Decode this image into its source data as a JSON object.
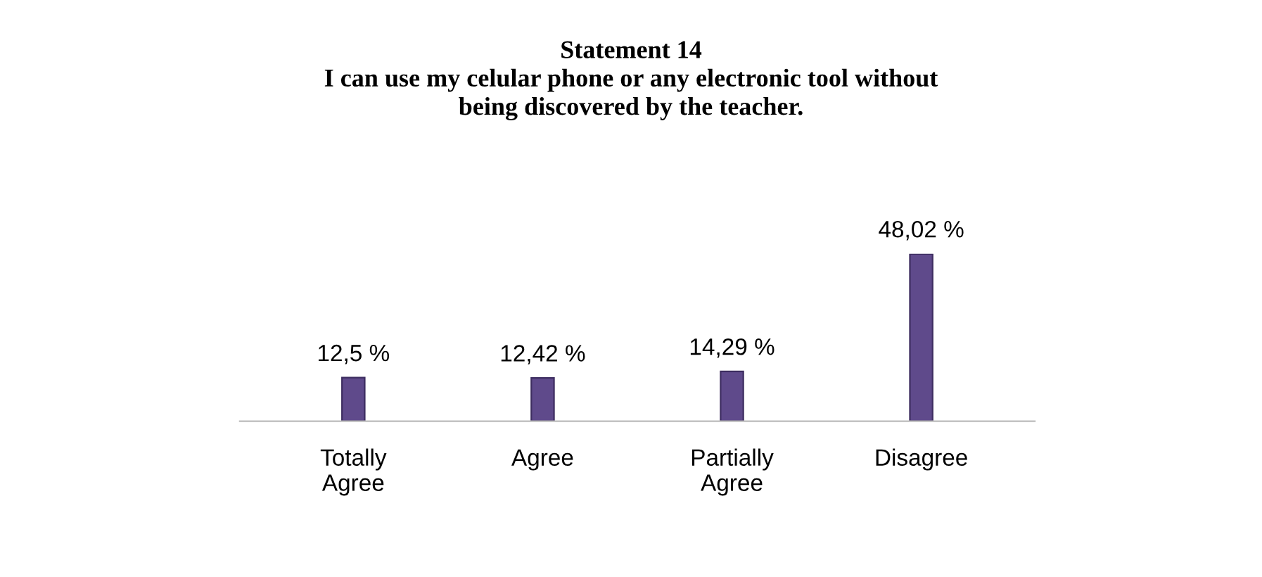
{
  "chart_data": {
    "type": "bar",
    "title": "Statement 14\nI can use my celular phone or any electronic tool without\nbeing discovered by the teacher.",
    "categories": [
      "Totally\nAgree",
      "Agree",
      "Partially\nAgree",
      "Disagree"
    ],
    "values": [
      12.5,
      12.42,
      14.29,
      48.02
    ],
    "value_labels": [
      "12,5 %",
      "12,42 %",
      "14,29 %",
      "48,02 %"
    ],
    "color": "#5f4a8b",
    "grid": false,
    "legend": false
  }
}
